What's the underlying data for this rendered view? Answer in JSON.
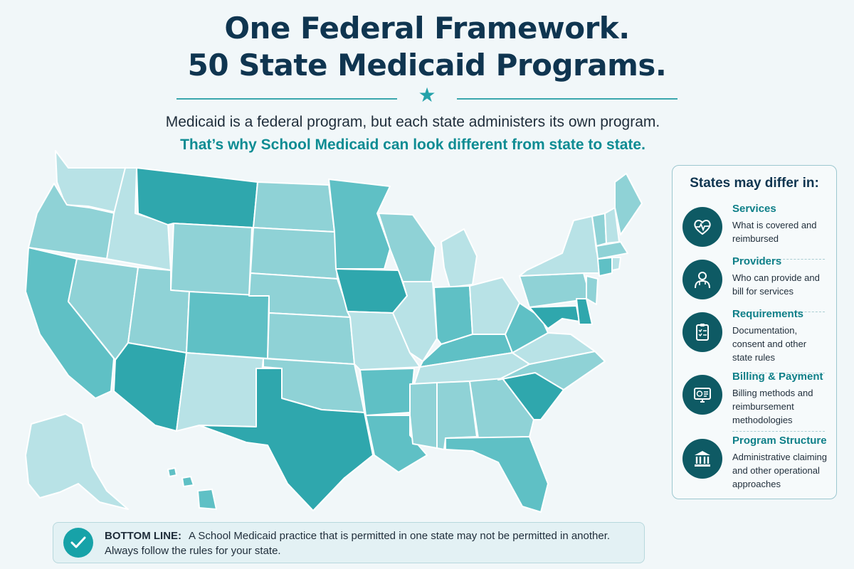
{
  "header": {
    "title_line1": "One Federal Framework.",
    "title_line2": "50 State Medicaid Programs.",
    "subtitle": "Medicaid is a federal program, but each state administers its own program.",
    "highlight": "That’s why School Medicaid can look different from state to state."
  },
  "colors": {
    "accent": "#17a2a8",
    "dark": "#0e5a64",
    "title": "#0f3550",
    "state_shades": [
      "#b8e2e6",
      "#8fd2d6",
      "#5fc0c5",
      "#2fa7ad"
    ]
  },
  "panel": {
    "title": "States may differ in:",
    "items": [
      {
        "icon": "heartbeat-icon",
        "heading": "Services",
        "desc": "What is covered and reimbursed"
      },
      {
        "icon": "doctor-icon",
        "heading": "Providers",
        "desc": "Who can provide and bill for services"
      },
      {
        "icon": "clipboard-icon",
        "heading": "Requirements",
        "desc": "Documentation, consent and other state rules"
      },
      {
        "icon": "billing-monitor-icon",
        "heading": "Billing & Payment",
        "desc": "Billing methods and reimbursement methodologies"
      },
      {
        "icon": "government-building-icon",
        "heading": "Program Structure",
        "desc": "Administrative claiming and other operational approaches"
      }
    ]
  },
  "bottom": {
    "label": "BOTTOM LINE:",
    "text": "A School Medicaid practice that is permitted in one state may not be permitted in another. Always follow the rules for your state."
  }
}
